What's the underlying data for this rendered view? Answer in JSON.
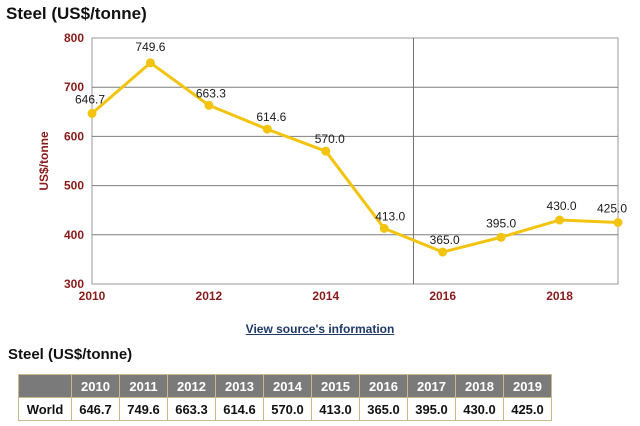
{
  "chart_data": {
    "type": "line",
    "title": "Steel (US$/tonne)",
    "ylabel": "US$/tonne",
    "xlabel": "",
    "x": [
      2010,
      2011,
      2012,
      2013,
      2014,
      2015,
      2016,
      2017,
      2018,
      2019
    ],
    "values": [
      646.7,
      749.6,
      663.3,
      614.6,
      570.0,
      413.0,
      365.0,
      395.0,
      430.0,
      425.0
    ],
    "value_labels": [
      "646.7",
      "749.6",
      "663.3",
      "614.6",
      "570.0",
      "413.0",
      "365.0",
      "395.0",
      "430.0",
      "425.0"
    ],
    "x_ticks": [
      "2010",
      "2012",
      "2014",
      "2016",
      "2018"
    ],
    "y_ticks": [
      "300",
      "400",
      "500",
      "600",
      "700",
      "800"
    ],
    "ylim": [
      300,
      800
    ],
    "xlim": [
      2010,
      2019
    ],
    "grid": true,
    "vertical_marker_x": 2015.5,
    "line_color": "#f2c40f",
    "axis_label_color": "#8b1a1a"
  },
  "source_link": "View source's information",
  "table": {
    "title": "Steel (US$/tonne)",
    "corner": "",
    "columns": [
      "2010",
      "2011",
      "2012",
      "2013",
      "2014",
      "2015",
      "2016",
      "2017",
      "2018",
      "2019"
    ],
    "rows": [
      {
        "label": "World",
        "values": [
          "646.7",
          "749.6",
          "663.3",
          "614.6",
          "570.0",
          "413.0",
          "365.0",
          "395.0",
          "430.0",
          "425.0"
        ]
      }
    ]
  }
}
